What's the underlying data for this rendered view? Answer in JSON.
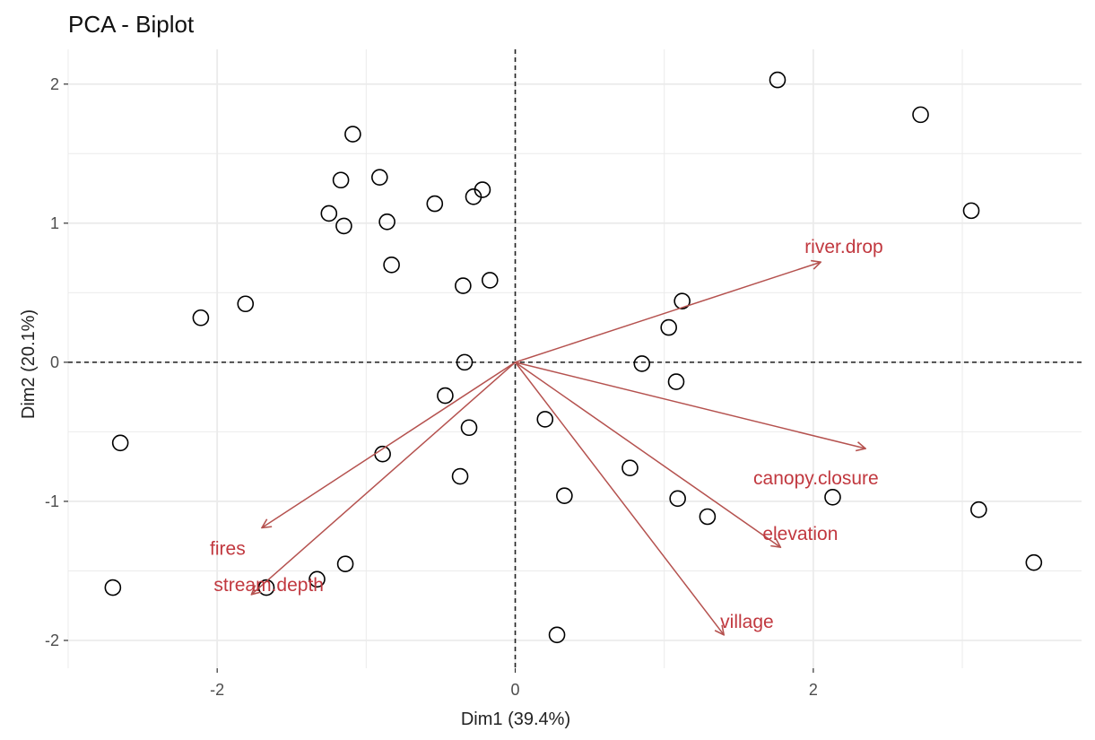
{
  "chart_data": {
    "type": "scatter",
    "title": "PCA - Biplot",
    "xlabel": "Dim1 (39.4%)",
    "ylabel": "Dim2 (20.1%)",
    "xlim": [
      -3.0,
      3.8
    ],
    "ylim": [
      -2.2,
      2.25
    ],
    "xticks": [
      -2,
      0,
      2
    ],
    "yticks": [
      -2,
      -1,
      0,
      1,
      2
    ],
    "grid": true,
    "reference_lines": {
      "x": 0,
      "y": 0,
      "style": "dashed"
    },
    "points": [
      {
        "x": 1.76,
        "y": 2.03
      },
      {
        "x": 2.72,
        "y": 1.78
      },
      {
        "x": 3.06,
        "y": 1.09
      },
      {
        "x": -1.09,
        "y": 1.64
      },
      {
        "x": -0.91,
        "y": 1.33
      },
      {
        "x": -1.17,
        "y": 1.31
      },
      {
        "x": -0.22,
        "y": 1.24
      },
      {
        "x": -0.28,
        "y": 1.19
      },
      {
        "x": -0.54,
        "y": 1.14
      },
      {
        "x": -1.25,
        "y": 1.07
      },
      {
        "x": -0.86,
        "y": 1.01
      },
      {
        "x": -1.15,
        "y": 0.98
      },
      {
        "x": -0.83,
        "y": 0.7
      },
      {
        "x": -0.17,
        "y": 0.59
      },
      {
        "x": -0.35,
        "y": 0.55
      },
      {
        "x": 1.12,
        "y": 0.44
      },
      {
        "x": -1.81,
        "y": 0.42
      },
      {
        "x": -2.11,
        "y": 0.32
      },
      {
        "x": 1.03,
        "y": 0.25
      },
      {
        "x": -0.34,
        "y": 0.0
      },
      {
        "x": 0.85,
        "y": -0.01
      },
      {
        "x": 1.08,
        "y": -0.14
      },
      {
        "x": -0.47,
        "y": -0.24
      },
      {
        "x": 0.2,
        "y": -0.41
      },
      {
        "x": -0.31,
        "y": -0.47
      },
      {
        "x": -2.65,
        "y": -0.58
      },
      {
        "x": -0.89,
        "y": -0.66
      },
      {
        "x": 0.77,
        "y": -0.76
      },
      {
        "x": -0.37,
        "y": -0.82
      },
      {
        "x": 0.33,
        "y": -0.96
      },
      {
        "x": 2.13,
        "y": -0.97
      },
      {
        "x": 1.09,
        "y": -0.98
      },
      {
        "x": 3.11,
        "y": -1.06
      },
      {
        "x": 1.29,
        "y": -1.11
      },
      {
        "x": 3.48,
        "y": -1.44
      },
      {
        "x": -1.14,
        "y": -1.45
      },
      {
        "x": -1.33,
        "y": -1.56
      },
      {
        "x": -1.67,
        "y": -1.62
      },
      {
        "x": -2.7,
        "y": -1.62
      },
      {
        "x": 0.28,
        "y": -1.96
      }
    ],
    "variables": [
      {
        "name": "river.drop",
        "x": 2.05,
        "y": 0.72
      },
      {
        "name": "canopy.closure",
        "x": 2.35,
        "y": -0.62
      },
      {
        "name": "elevation",
        "x": 1.78,
        "y": -1.33
      },
      {
        "name": "village",
        "x": 1.4,
        "y": -1.96
      },
      {
        "name": "fires",
        "x": -1.7,
        "y": -1.19
      },
      {
        "name": "stream.depth",
        "x": -1.77,
        "y": -1.67
      }
    ],
    "colors": {
      "points": "#000000",
      "arrows": "#b5524f",
      "labels": "#c1383f",
      "grid": "#ebebeb"
    }
  }
}
